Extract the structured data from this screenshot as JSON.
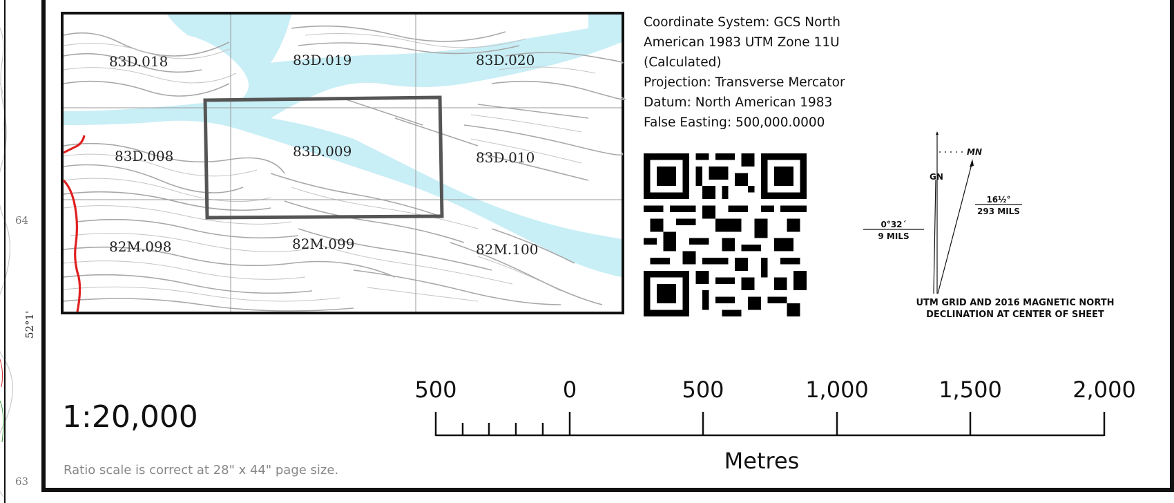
{
  "left_margin": {
    "tick_upper": "64",
    "tick_lower": "63",
    "latitude": "52°1'"
  },
  "index_map": {
    "sheets": [
      {
        "id": "83D.018"
      },
      {
        "id": "83D.019"
      },
      {
        "id": "83D.020"
      },
      {
        "id": "83D.008"
      },
      {
        "id": "83D.009"
      },
      {
        "id": "83D.010"
      },
      {
        "id": "82M.098"
      },
      {
        "id": "82M.099"
      },
      {
        "id": "82M.100"
      }
    ],
    "colors": {
      "water": "#c8eef6",
      "contour": "#a8a8a8",
      "boundary": "#e02020",
      "extent": "#555555"
    }
  },
  "metadata": {
    "lines": [
      "Coordinate System: GCS North",
      "American 1983 UTM Zone 11U",
      "(Calculated)",
      "Projection: Transverse Mercator",
      "Datum: North American 1983",
      "False Easting: 500,000.0000"
    ]
  },
  "qr_code": {
    "icon": "qr-code-icon"
  },
  "declination": {
    "magnetic_label": "MN",
    "grid_label": "GN",
    "angle_deg": "16½°",
    "angle_mils": "293 MILS",
    "grid_deg": "0°32´",
    "grid_mils": "9 MILS",
    "caption_line1": "UTM GRID AND 2016 MAGNETIC NORTH",
    "caption_line2": "DECLINATION AT CENTER OF SHEET"
  },
  "scale": {
    "ratio": "1:20,000",
    "note": "Ratio scale is correct at 28\" x 44\" page size.",
    "labels": [
      "500",
      "0",
      "500",
      "1,000",
      "1,500",
      "2,000"
    ],
    "units": "Metres"
  }
}
